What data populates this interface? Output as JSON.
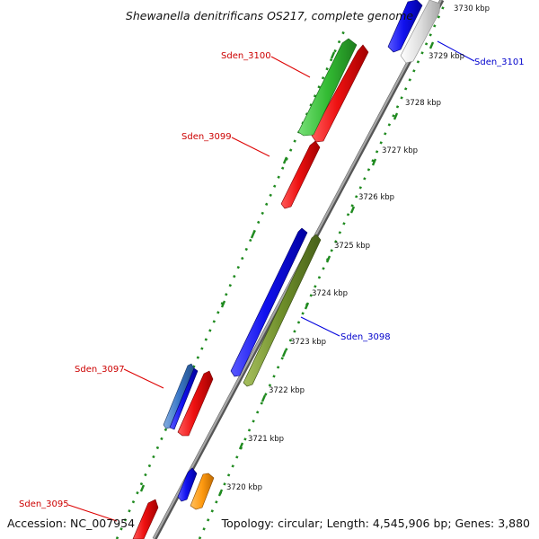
{
  "title": "Shewanella denitrificans OS217, complete genome",
  "footer": {
    "accession": "Accession: NC_007954",
    "summary": "Topology: circular; Length: 4,545,906 bp; Genes: 3,880"
  },
  "colors": {
    "backbone": "#8a8a8a",
    "ruler": "#1f8a1f",
    "label_red": "#cc0000",
    "label_blue": "#0000cc",
    "leader_red": "#dd0000",
    "leader_blue": "#0000dd"
  },
  "ticks": [
    {
      "kbp": 3730,
      "label": "3730 kbp"
    },
    {
      "kbp": 3729,
      "label": "3729 kbp"
    },
    {
      "kbp": 3728,
      "label": "3728 kbp"
    },
    {
      "kbp": 3727,
      "label": "3727 kbp"
    },
    {
      "kbp": 3726,
      "label": "3726 kbp"
    },
    {
      "kbp": 3725,
      "label": "3725 kbp"
    },
    {
      "kbp": 3724,
      "label": "3724 kbp"
    },
    {
      "kbp": 3723,
      "label": "3723 kbp"
    },
    {
      "kbp": 3722,
      "label": "3722 kbp"
    },
    {
      "kbp": 3721,
      "label": "3721 kbp"
    },
    {
      "kbp": 3720,
      "label": "3720 kbp"
    }
  ],
  "genes": [
    {
      "name": "Sden_3095",
      "color": "#ee1111",
      "lane": "fwd"
    },
    {
      "name": "Sden_3097",
      "color": "#3a78c8",
      "lane": "rev"
    },
    {
      "name": "Sden_3098",
      "color": "#1111ee",
      "lane": "rev"
    },
    {
      "name": "Sden_3099",
      "color": "#ee1111",
      "lane": "fwd"
    },
    {
      "name": "Sden_3100",
      "color": "#ee1111",
      "lane": "fwd"
    },
    {
      "name": "Sden_3101",
      "color": "#1111ee",
      "lane": "rev"
    }
  ],
  "labels": [
    {
      "text": "Sden_3100",
      "color": "red"
    },
    {
      "text": "Sden_3099",
      "color": "red"
    },
    {
      "text": "Sden_3101",
      "color": "blue"
    },
    {
      "text": "Sden_3098",
      "color": "blue"
    },
    {
      "text": "Sden_3097",
      "color": "red"
    },
    {
      "text": "Sden_3095",
      "color": "red"
    }
  ]
}
